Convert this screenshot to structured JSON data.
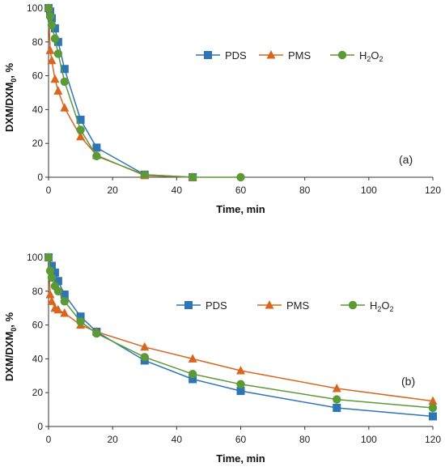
{
  "chart_data": [
    {
      "type": "line",
      "panel_label": "(a)",
      "xlabel": "Time, min",
      "ylabel": "DXM/DXM",
      "ylabel_sub": "0",
      "ylabel_suffix": ", %",
      "xlim": [
        0,
        120
      ],
      "ylim": [
        0,
        100
      ],
      "xticks": [
        0,
        20,
        40,
        60,
        80,
        100,
        120
      ],
      "yticks": [
        0,
        20,
        40,
        60,
        80,
        100
      ],
      "legend_position": "upper-right",
      "series": [
        {
          "name": "PDS",
          "name_main": "PDS",
          "name_sub": "",
          "name_tail": "",
          "marker": "square",
          "color": "#2E75B6",
          "x": [
            0,
            0.5,
            1,
            2,
            3,
            5,
            10,
            15,
            30,
            45
          ],
          "y": [
            100,
            98,
            94,
            88,
            80,
            64,
            34,
            17.5,
            1.5,
            0
          ]
        },
        {
          "name": "PMS",
          "name_main": "PMS",
          "name_sub": "",
          "name_tail": "",
          "marker": "triangle",
          "color": "#D9661F",
          "x": [
            0,
            0.5,
            1,
            2,
            3,
            5,
            10,
            15,
            30,
            45
          ],
          "y": [
            100,
            75,
            69,
            58,
            51,
            41,
            24,
            13,
            1,
            0
          ]
        },
        {
          "name": "H2O2",
          "name_main": "H",
          "name_sub": "2",
          "name_tail": "O",
          "name_sub2": "2",
          "marker": "circle",
          "color": "#5B9A35",
          "x": [
            0,
            0.5,
            1,
            2,
            3,
            5,
            10,
            15,
            30,
            45,
            60
          ],
          "y": [
            100,
            95,
            90,
            82,
            73,
            56.5,
            28,
            12.5,
            1.5,
            0,
            0
          ]
        }
      ]
    },
    {
      "type": "line",
      "panel_label": "(b)",
      "xlabel": "Time, min",
      "ylabel": "DXM/DXM",
      "ylabel_sub": "0",
      "ylabel_suffix": ", %",
      "xlim": [
        0,
        120
      ],
      "ylim": [
        0,
        100
      ],
      "xticks": [
        0,
        20,
        40,
        60,
        80,
        100,
        120
      ],
      "yticks": [
        0,
        20,
        40,
        60,
        80,
        100
      ],
      "legend_position": "middle-right",
      "series": [
        {
          "name": "PDS",
          "name_main": "PDS",
          "name_sub": "",
          "name_tail": "",
          "marker": "square",
          "color": "#2E75B6",
          "x": [
            0,
            1,
            2,
            3,
            5,
            10,
            15,
            30,
            45,
            60,
            90,
            120
          ],
          "y": [
            100,
            95,
            91,
            86,
            78,
            65,
            56,
            39,
            28,
            21,
            11,
            6
          ]
        },
        {
          "name": "PMS",
          "name_main": "PMS",
          "name_sub": "",
          "name_tail": "",
          "marker": "triangle",
          "color": "#D9661F",
          "x": [
            0,
            0.5,
            1,
            2,
            3,
            5,
            10,
            15,
            30,
            45,
            60,
            90,
            120
          ],
          "y": [
            100,
            78,
            74,
            70,
            69,
            67,
            60,
            56,
            47,
            40,
            33,
            22.5,
            15
          ]
        },
        {
          "name": "H2O2",
          "name_main": "H",
          "name_sub": "2",
          "name_tail": "O",
          "name_sub2": "2",
          "marker": "circle",
          "color": "#5B9A35",
          "x": [
            0,
            0.5,
            1,
            2,
            3,
            5,
            10,
            15,
            30,
            45,
            60,
            90,
            120
          ],
          "y": [
            100,
            92,
            88,
            83,
            80,
            74,
            62,
            55,
            41,
            31,
            25,
            16,
            11
          ]
        }
      ]
    }
  ]
}
